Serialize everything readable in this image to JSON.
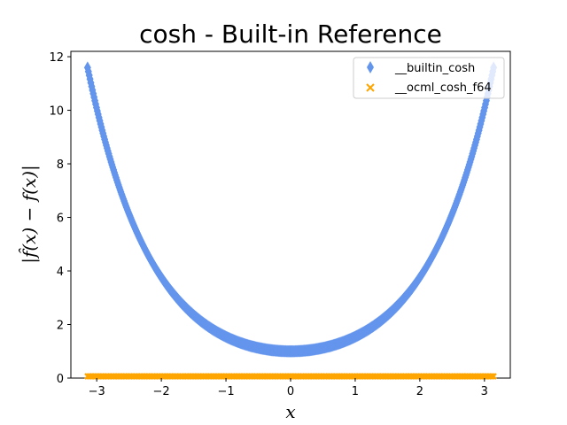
{
  "chart_data": {
    "type": "scatter",
    "title": "cosh - Built-in Reference",
    "xlabel": "x",
    "ylabel": "|f̂(x) − f(x)|",
    "xlim": [
      -3.4,
      3.4
    ],
    "ylim": [
      0,
      12.2
    ],
    "xticks": [
      -3,
      -2,
      -1,
      0,
      1,
      2,
      3
    ],
    "xtick_labels": [
      "−3",
      "−2",
      "−1",
      "0",
      "1",
      "2",
      "3"
    ],
    "yticks": [
      0,
      2,
      4,
      6,
      8,
      10,
      12
    ],
    "ytick_labels": [
      "0",
      "2",
      "4",
      "6",
      "8",
      "10",
      "12"
    ],
    "grid": false,
    "legend_position": "top-right",
    "series": [
      {
        "name": "__builtin_cosh",
        "marker": "diamond",
        "color": "#6495ED",
        "function": "cosh(x)",
        "x_range": [
          -3.1416,
          3.1416
        ],
        "sample_x": [
          -3.1416,
          -3,
          -2.5,
          -2,
          -1.5,
          -1,
          -0.5,
          0,
          0.5,
          1,
          1.5,
          2,
          2.5,
          3,
          3.1416
        ],
        "sample_y": [
          11.59,
          10.07,
          6.13,
          3.76,
          2.35,
          1.54,
          1.13,
          1.0,
          1.13,
          1.54,
          2.35,
          3.76,
          6.13,
          10.07,
          11.59
        ]
      },
      {
        "name": "__ocml_cosh_f64",
        "marker": "x",
        "color": "#FFA500",
        "function": "0",
        "x_range": [
          -3.1416,
          3.1416
        ],
        "sample_x": [
          -3.1416,
          0,
          3.1416
        ],
        "sample_y": [
          0,
          0,
          0
        ]
      }
    ]
  }
}
